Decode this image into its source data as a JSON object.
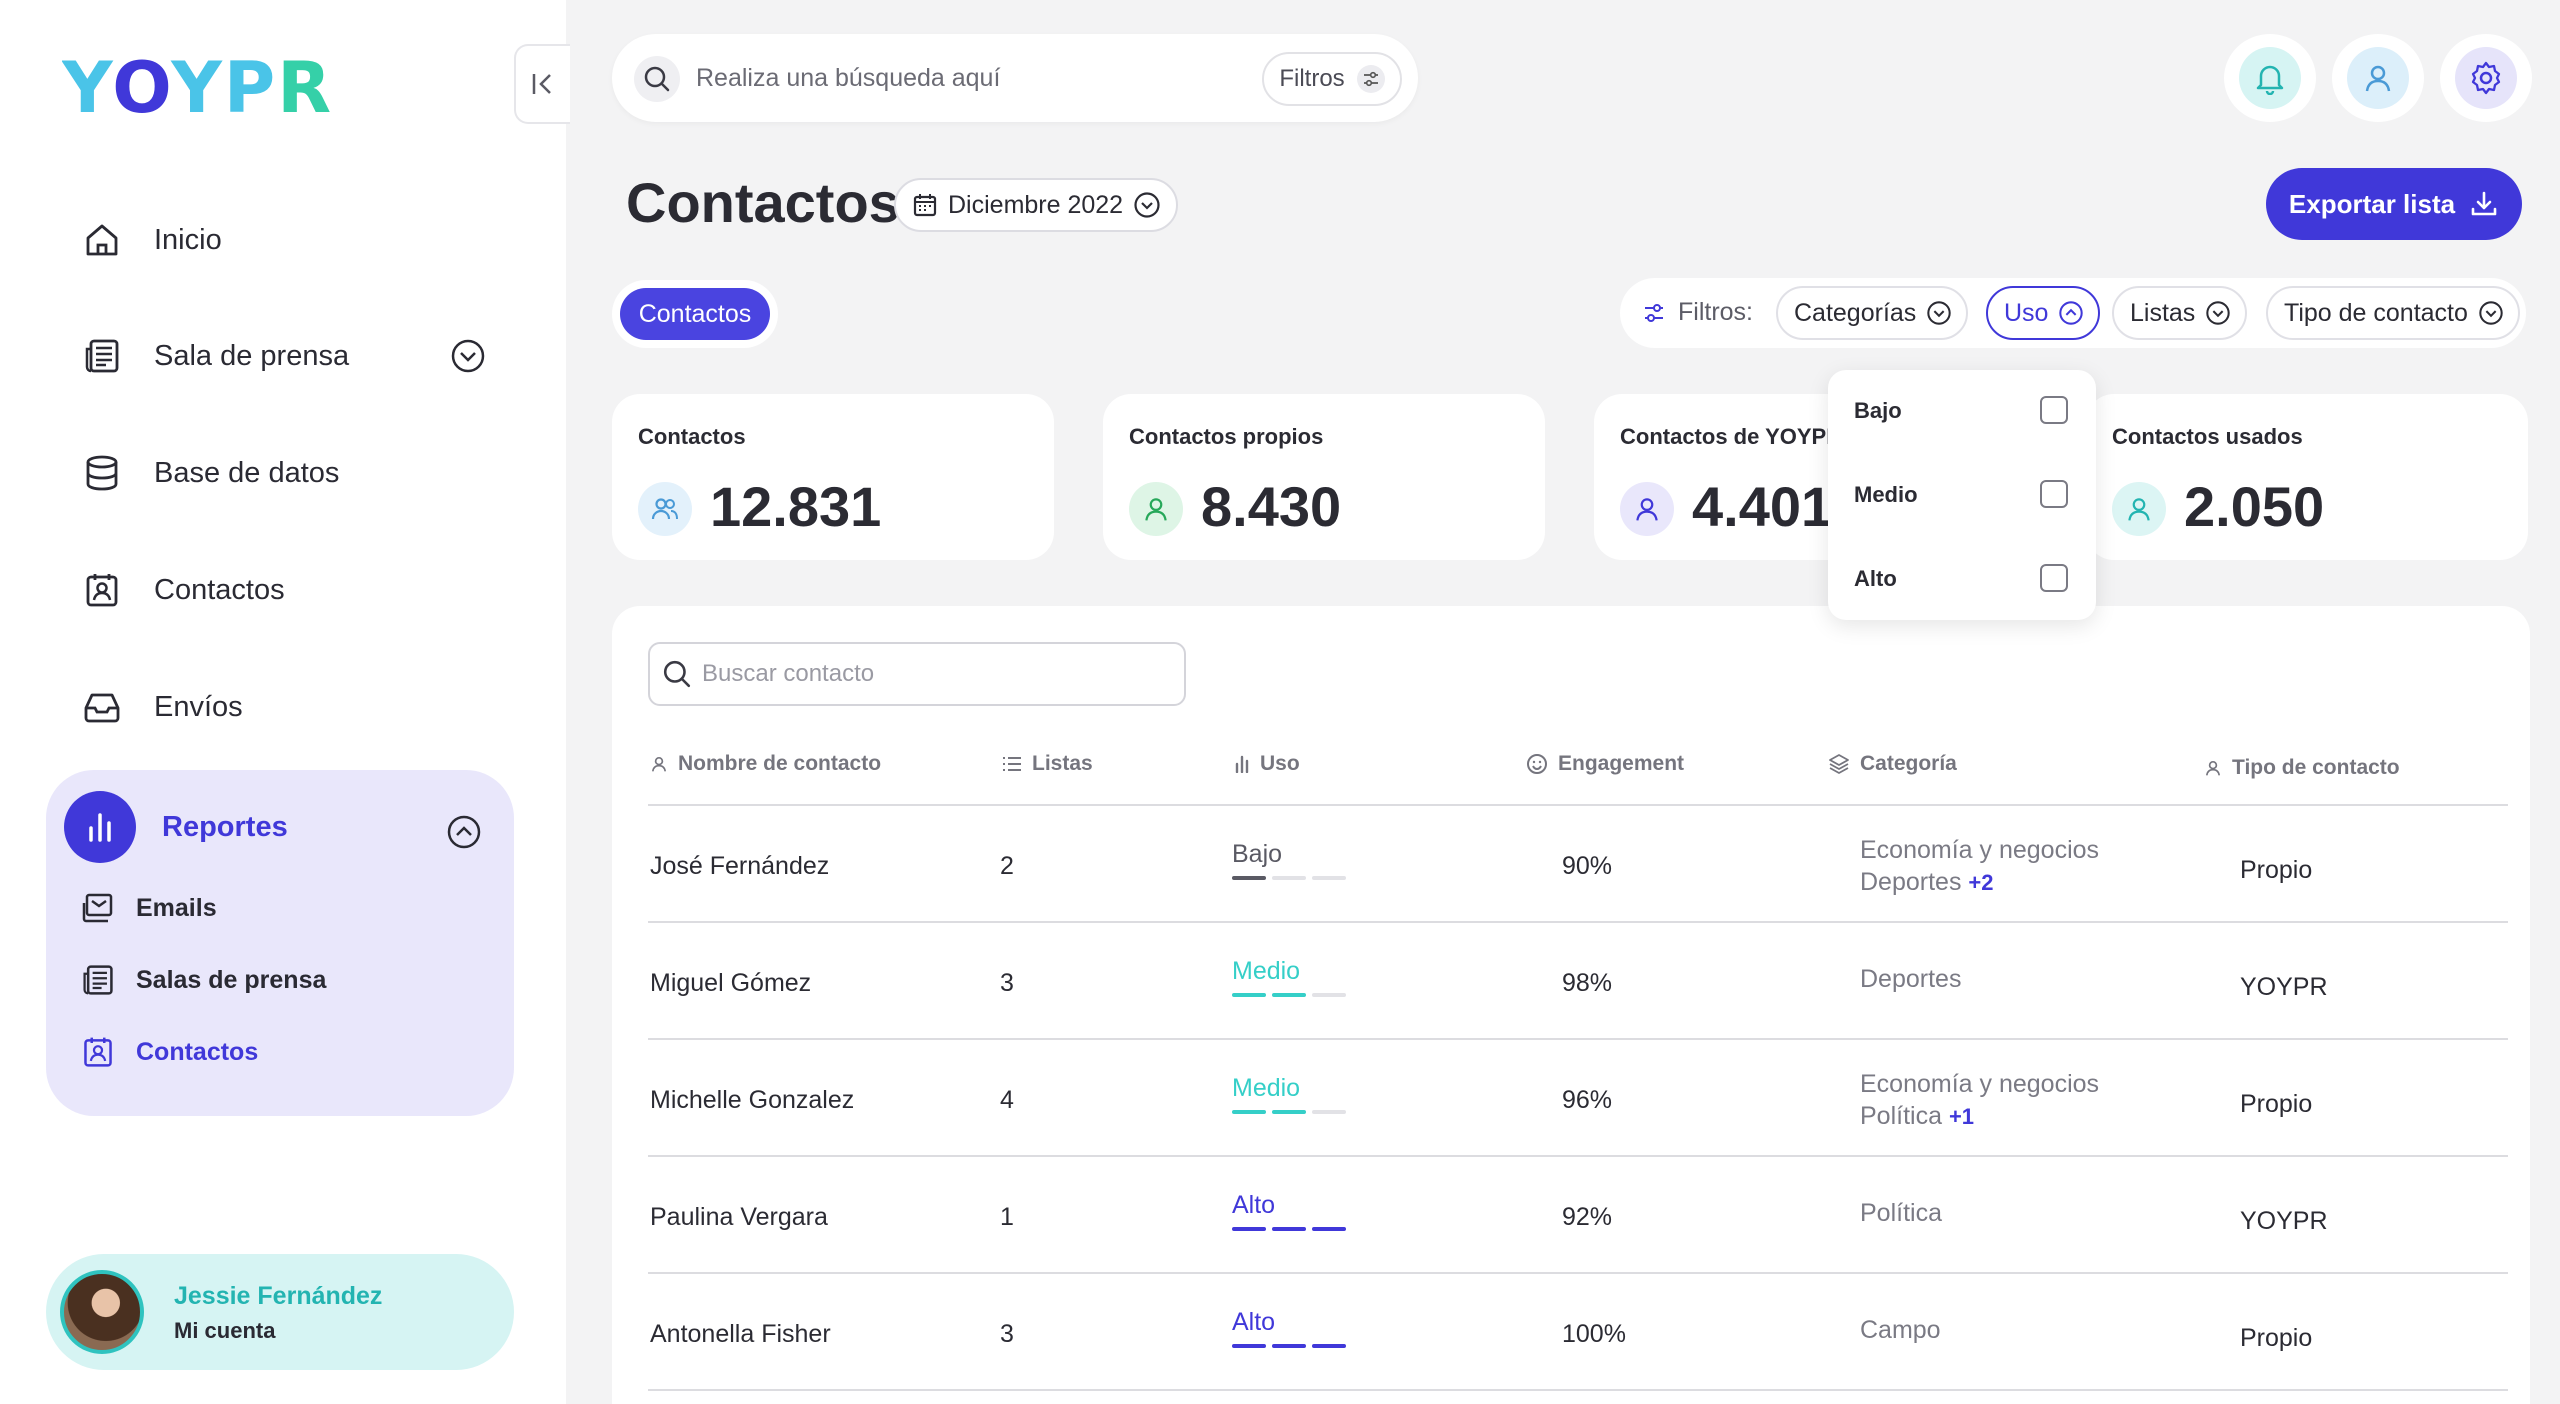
{
  "app": {
    "logo": "YOYPR"
  },
  "sidebar": {
    "items": [
      {
        "label": "Inicio",
        "icon": "home-icon"
      },
      {
        "label": "Sala de prensa",
        "icon": "newspaper-icon"
      },
      {
        "label": "Base de datos",
        "icon": "database-icon"
      },
      {
        "label": "Contactos",
        "icon": "contact-card-icon"
      },
      {
        "label": "Envíos",
        "icon": "inbox-icon"
      }
    ],
    "reports": {
      "label": "Reportes",
      "sub_items": [
        {
          "label": "Emails",
          "icon": "mail-icon"
        },
        {
          "label": "Salas de prensa",
          "icon": "newspaper-icon"
        },
        {
          "label": "Contactos",
          "icon": "contact-card-icon",
          "active": true
        }
      ]
    },
    "account": {
      "name": "Jessie Fernández",
      "sub": "Mi cuenta"
    }
  },
  "topbar": {
    "search_placeholder": "Realiza una búsqueda aquí",
    "filters_label": "Filtros"
  },
  "header": {
    "title": "Contactos",
    "date": "Diciembre 2022",
    "export_label": "Exportar lista"
  },
  "tabs": [
    {
      "label": "Contactos",
      "active": true
    }
  ],
  "filters": {
    "label": "Filtros:",
    "chips": [
      {
        "label": "Categorías"
      },
      {
        "label": "Uso",
        "active": true
      },
      {
        "label": "Listas"
      },
      {
        "label": "Tipo de contacto"
      }
    ]
  },
  "stats": [
    {
      "title": "Contactos",
      "value": "12.831",
      "color": "#e3f1fb"
    },
    {
      "title": "Contactos propios",
      "value": "8.430",
      "color": "#def5e6"
    },
    {
      "title": "Contactos de YOYPR",
      "value": "4.401",
      "color": "#e9e7fb"
    },
    {
      "title": "Contactos usados",
      "value": "2.050",
      "color": "#dcf5f4"
    }
  ],
  "uso_dropdown": {
    "options": [
      {
        "label": "Bajo",
        "checked": false
      },
      {
        "label": "Medio",
        "checked": false
      },
      {
        "label": "Alto",
        "checked": false
      }
    ]
  },
  "table": {
    "search_placeholder": "Buscar contacto",
    "columns": [
      "Nombre de contacto",
      "Listas",
      "Uso",
      "Engagement",
      "Categoría",
      "Tipo de contacto"
    ],
    "rows": [
      {
        "name": "José Fernández",
        "lists": "2",
        "uso": "Bajo",
        "uso_level": 1,
        "engagement": "90%",
        "cat1": "Economía y negocios",
        "cat2": "Deportes",
        "cat_more": "+2",
        "type": "Propio"
      },
      {
        "name": "Miguel Gómez",
        "lists": "3",
        "uso": "Medio",
        "uso_level": 2,
        "engagement": "98%",
        "cat1": "Deportes",
        "cat2": "",
        "cat_more": "",
        "type": "YOYPR"
      },
      {
        "name": "Michelle Gonzalez",
        "lists": "4",
        "uso": "Medio",
        "uso_level": 2,
        "engagement": "96%",
        "cat1": "Economía y negocios",
        "cat2": "Política",
        "cat_more": "+1",
        "type": "Propio"
      },
      {
        "name": "Paulina Vergara",
        "lists": "1",
        "uso": "Alto",
        "uso_level": 3,
        "engagement": "92%",
        "cat1": "Política",
        "cat2": "",
        "cat_more": "",
        "type": "YOYPR"
      },
      {
        "name": "Antonella Fisher",
        "lists": "3",
        "uso": "Alto",
        "uso_level": 3,
        "engagement": "100%",
        "cat1": "Campo",
        "cat2": "",
        "cat_more": "",
        "type": "Propio"
      }
    ]
  },
  "colors": {
    "primary": "#4038d9",
    "teal": "#2fc3bf",
    "uso_bajo": "#5a5a64",
    "uso_medio": "#35cfc8",
    "uso_alto": "#4038d9"
  }
}
